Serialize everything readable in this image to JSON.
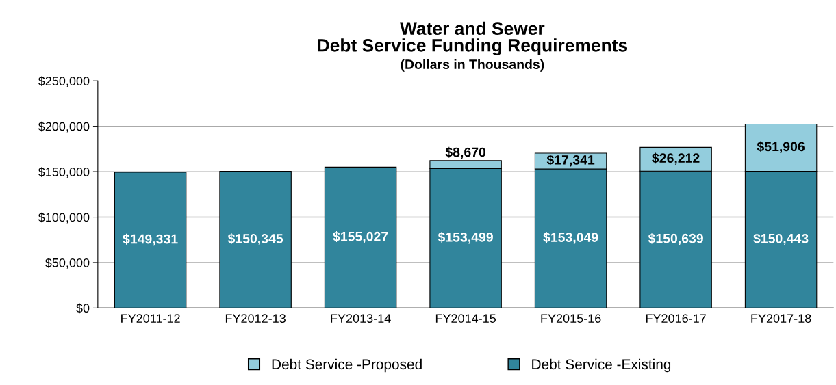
{
  "chart_data": {
    "type": "bar",
    "title": "Water and Sewer\nDebt Service Funding Requirements",
    "subtitle": "(Dollars in Thousands)",
    "categories": [
      "FY2011-12",
      "FY2012-13",
      "FY2013-14",
      "FY2014-15",
      "FY2015-16",
      "FY2016-17",
      "FY2017-18"
    ],
    "stacked": true,
    "series": [
      {
        "name": "Debt Service -Existing",
        "color": "#31859c",
        "values": [
          149331,
          150345,
          155027,
          153499,
          153049,
          150639,
          150443
        ],
        "value_labels": [
          "$149,331",
          "$150,345",
          "$155,027",
          "$153,499",
          "$153,049",
          "$150,639",
          "$150,443"
        ]
      },
      {
        "name": "Debt Service -Proposed",
        "color": "#93cddd",
        "values": [
          null,
          null,
          null,
          8670,
          17341,
          26212,
          51906
        ],
        "value_labels": [
          null,
          null,
          null,
          "$8,670",
          "$17,341",
          "$26,212",
          "$51,906"
        ]
      }
    ],
    "ylim": [
      0,
      250000
    ],
    "yticks": [
      {
        "value": 0,
        "label": "$0"
      },
      {
        "value": 50000,
        "label": "$50,000"
      },
      {
        "value": 100000,
        "label": "$100,000"
      },
      {
        "value": 150000,
        "label": "$150,000"
      },
      {
        "value": 200000,
        "label": "$200,000"
      },
      {
        "value": 250000,
        "label": "$250,000"
      }
    ],
    "grid": "y",
    "legend": "bottom"
  }
}
